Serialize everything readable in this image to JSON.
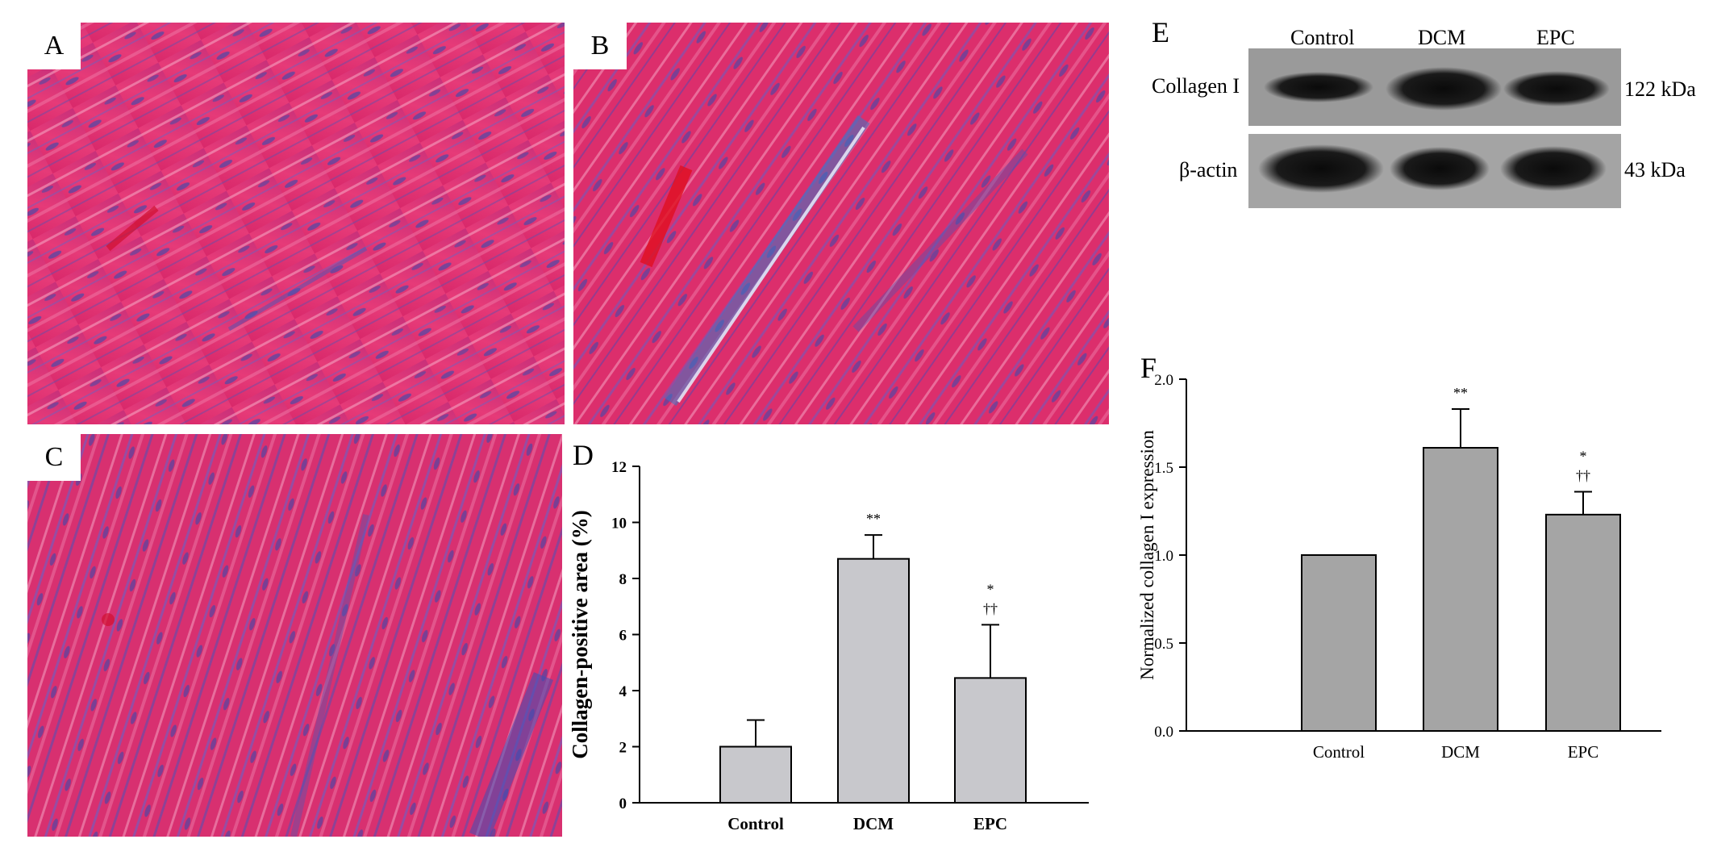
{
  "panels": {
    "a": {
      "letter": "A"
    },
    "b": {
      "letter": "B"
    },
    "c": {
      "letter": "C"
    },
    "d": {
      "letter": "D"
    },
    "e": {
      "letter": "E"
    },
    "f": {
      "letter": "F"
    }
  },
  "western_blot": {
    "lanes": [
      "Control",
      "DCM",
      "EPC"
    ],
    "rows": [
      {
        "label": "Collagen I",
        "size": "122 kDa"
      },
      {
        "label": "β-actin",
        "size": "43 kDa"
      }
    ]
  },
  "colors": {
    "bar_d": "#c8c8cc",
    "bar_f": "#a5a5a5",
    "tissue_red": "#e0306a",
    "tissue_blue": "#5566c0"
  },
  "chart_data": [
    {
      "type": "bar",
      "categories": [
        "Control",
        "DCM",
        "EPC"
      ],
      "values": [
        2.0,
        8.7,
        4.45
      ],
      "errors": [
        0.95,
        0.85,
        1.9
      ],
      "annotations": [
        [],
        [
          "**"
        ],
        [
          "*",
          "††"
        ]
      ],
      "title": "",
      "xlabel": "",
      "ylabel": "Collagen-positive area (%)",
      "ylim": [
        0,
        12
      ],
      "yticks": [
        "0",
        "2",
        "4",
        "6",
        "8",
        "10",
        "12"
      ]
    },
    {
      "type": "bar",
      "categories": [
        "Control",
        "DCM",
        "EPC"
      ],
      "values": [
        1.0,
        1.61,
        1.23
      ],
      "errors": [
        0.0,
        0.22,
        0.13
      ],
      "annotations": [
        [],
        [
          "**"
        ],
        [
          "*",
          "††"
        ]
      ],
      "title": "",
      "xlabel": "",
      "ylabel": "Normalized collagen I expression",
      "ylim": [
        0,
        2.0
      ],
      "yticks": [
        "0.0",
        "0.5",
        "1.0",
        "1.5",
        "2.0"
      ]
    }
  ]
}
